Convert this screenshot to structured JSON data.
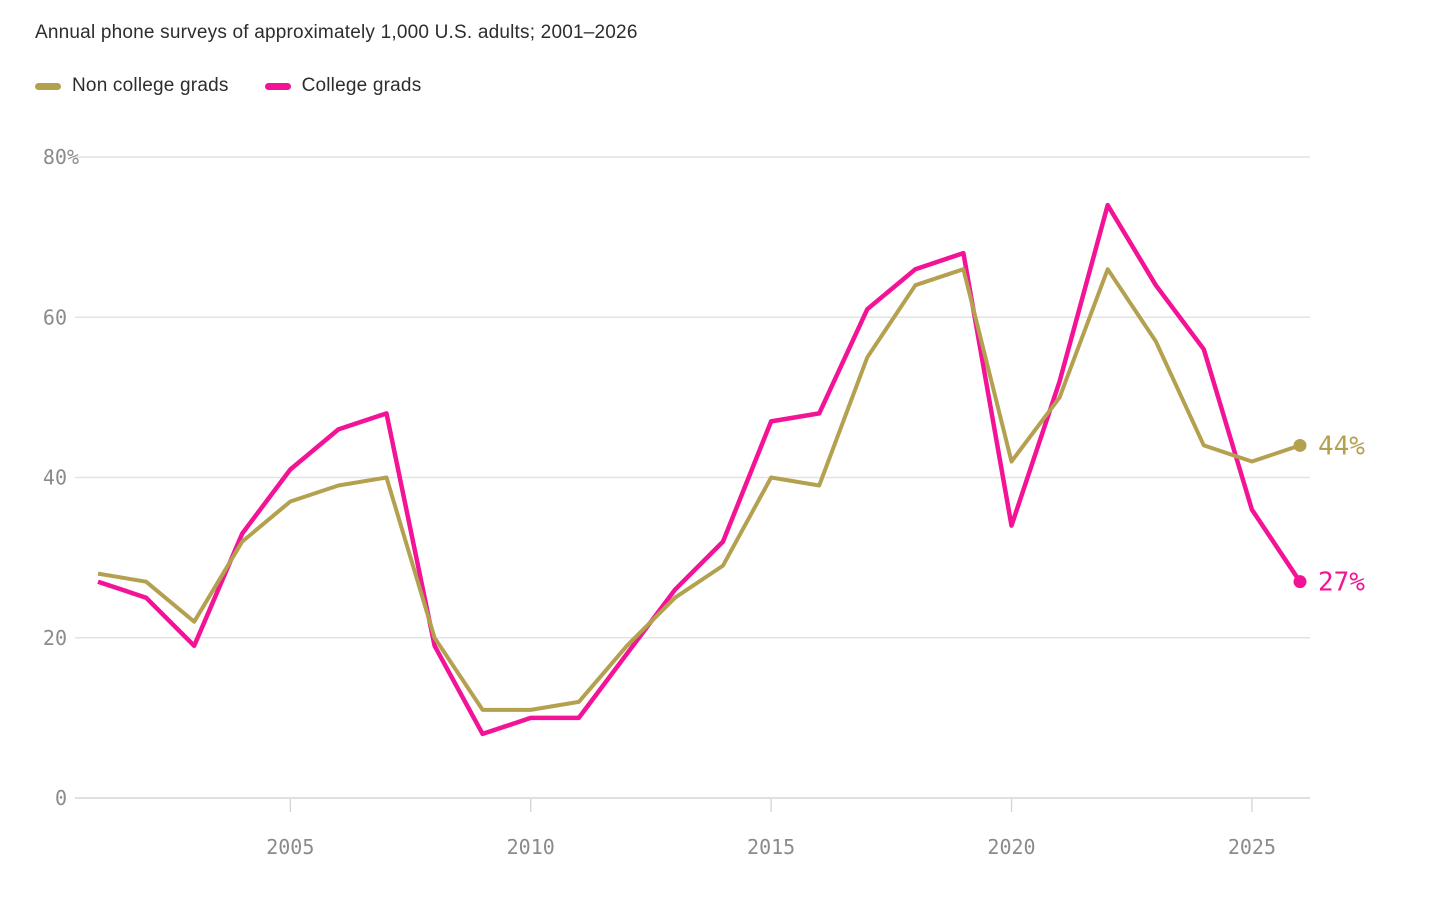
{
  "header": {
    "subtitle": "Annual phone surveys of approximately 1,000 U.S. adults; 2001–2026"
  },
  "legend": [
    {
      "label": "Non college grads",
      "color": "#b3a150"
    },
    {
      "label": "College grads",
      "color": "#f31397"
    }
  ],
  "chart_data": {
    "type": "line",
    "x": [
      2001,
      2002,
      2003,
      2004,
      2005,
      2006,
      2007,
      2008,
      2009,
      2010,
      2011,
      2012,
      2013,
      2014,
      2015,
      2016,
      2017,
      2018,
      2019,
      2020,
      2021,
      2022,
      2023,
      2024,
      2025,
      2026
    ],
    "series": [
      {
        "name": "Non college grads",
        "color": "#b3a150",
        "stroke_width": 4,
        "end_label": "44%",
        "values": [
          28,
          27,
          22,
          32,
          37,
          39,
          40,
          20,
          11,
          11,
          12,
          19,
          25,
          29,
          40,
          39,
          55,
          64,
          66,
          42,
          50,
          66,
          57,
          44,
          42,
          44
        ]
      },
      {
        "name": "College grads",
        "color": "#f31397",
        "stroke_width": 4.5,
        "end_label": "27%",
        "values": [
          27,
          25,
          19,
          33,
          41,
          46,
          48,
          19,
          8,
          10,
          10,
          18,
          26,
          32,
          47,
          48,
          61,
          66,
          68,
          34,
          52,
          74,
          64,
          56,
          36,
          27
        ]
      }
    ],
    "xticks": [
      2005,
      2010,
      2015,
      2020,
      2025
    ],
    "yticks": [
      {
        "value": 0,
        "label": "0"
      },
      {
        "value": 20,
        "label": "20"
      },
      {
        "value": 40,
        "label": "40"
      },
      {
        "value": 60,
        "label": "60"
      },
      {
        "value": 80,
        "label": "80%"
      }
    ],
    "xlim": [
      2001,
      2026
    ],
    "ylim": [
      0,
      80
    ],
    "grid": true,
    "legend_position": "top-left",
    "grid_color": "#e3e3e3",
    "axis_color": "#d6d6d6",
    "tick_label_color": "#8b8b8b"
  }
}
